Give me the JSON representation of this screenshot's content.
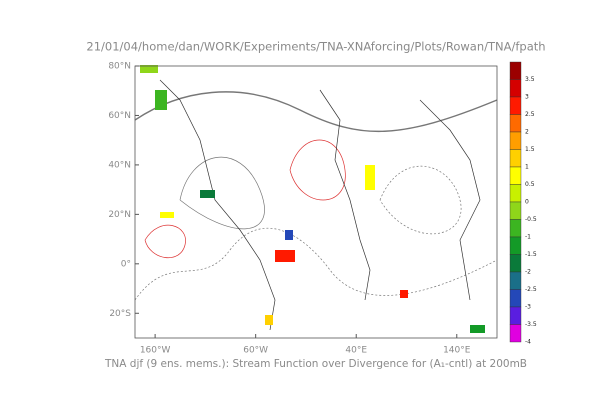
{
  "map": {
    "title": "21/01/04/home/dan/WORK/Experiments/TNA-XNAforcing/Plots/Rowan/TNA/fpath",
    "caption": "TNA djf (9 ens. mems.): Stream Function over Divergence for (A₁-cntl) at 200mB",
    "xlim": [
      -180,
      180
    ],
    "ylim": [
      -30,
      80
    ],
    "xticks": [
      {
        "value": -160,
        "label": "160°W"
      },
      {
        "value": -60,
        "label": "60°W"
      },
      {
        "value": 40,
        "label": "40°E"
      },
      {
        "value": 140,
        "label": "140°E"
      }
    ],
    "yticks": [
      {
        "value": 80,
        "label": "80°N"
      },
      {
        "value": 60,
        "label": "60°N"
      },
      {
        "value": 40,
        "label": "40°N"
      },
      {
        "value": 20,
        "label": "20°N"
      },
      {
        "value": 0,
        "label": "0°"
      },
      {
        "value": -20,
        "label": "20°S"
      }
    ],
    "colorbar": {
      "clim": [
        -4,
        4
      ],
      "levels": [
        3.5,
        3,
        2.5,
        2,
        1.5,
        1,
        0.5,
        0,
        -0.5,
        -1,
        -1.5,
        -2,
        -2.5,
        -3,
        -3.5,
        -4
      ],
      "colors": [
        "#9b0000",
        "#d40000",
        "#ff1a00",
        "#ff6a00",
        "#ff9e00",
        "#ffd000",
        "#ffff00",
        "#c8f000",
        "#8fd61a",
        "#3cb521",
        "#139a27",
        "#0a7a3a",
        "#1a6f88",
        "#2448b8",
        "#5a1ee0",
        "#e000e0"
      ]
    }
  }
}
